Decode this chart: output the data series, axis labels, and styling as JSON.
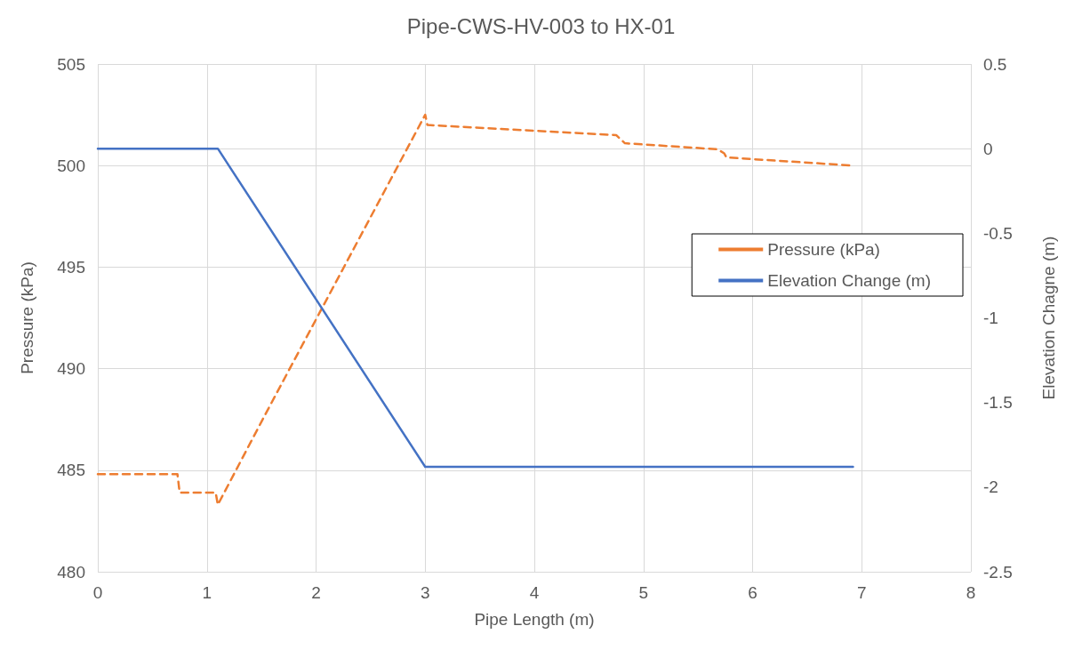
{
  "chart_data": {
    "type": "line",
    "title": "Pipe-CWS-HV-003 to HX-01",
    "xlabel": "Pipe Length (m)",
    "ylabel": "Pressure (kPa)",
    "y2label": "Elevation Chagne (m)",
    "xlim": [
      0,
      8
    ],
    "xticks": [
      0,
      1,
      2,
      3,
      4,
      5,
      6,
      7,
      8
    ],
    "ylim": [
      480,
      505
    ],
    "yticks": [
      480,
      485,
      490,
      495,
      500,
      505
    ],
    "y2lim": [
      -2.5,
      0.5
    ],
    "y2ticks": [
      -2.5,
      -2,
      -1.5,
      -1,
      -0.5,
      0,
      0.5
    ],
    "grid": true,
    "legend": "right",
    "marker": "none",
    "series": [
      {
        "name": "Pressure (kPa)",
        "color": "#ed7d31",
        "line_style": "dashed",
        "x": [
          0,
          0.73,
          0.75,
          1.08,
          1.1,
          1.55,
          1.57,
          3.0,
          3.02,
          4.75,
          4.83,
          5.68,
          5.74,
          5.76,
          6.92
        ],
        "values": [
          484.8,
          484.8,
          483.9,
          483.9,
          483.3,
          487.9,
          488.1,
          502.5,
          502.0,
          501.5,
          501.1,
          500.8,
          500.6,
          500.4,
          500.0
        ]
      },
      {
        "name": "Elevation Change (m)",
        "color": "#4472c4",
        "line_style": "solid",
        "axis": "y2",
        "x": [
          0,
          1.1,
          3.0,
          6.92
        ],
        "values": [
          0,
          0,
          -1.88,
          -1.88
        ]
      }
    ]
  }
}
